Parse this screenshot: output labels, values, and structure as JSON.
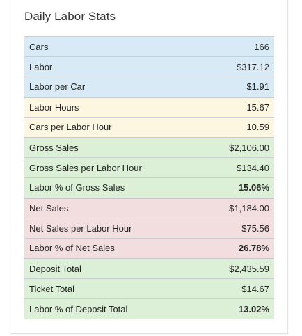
{
  "card": {
    "title": "Daily Labor Stats"
  },
  "colors": {
    "blue": "#d7eaf6",
    "yellow": "#fdf7e2",
    "green": "#dcefd7",
    "red": "#f3dedf"
  },
  "rows": [
    {
      "label": "Cars",
      "value": "166",
      "group": "blue"
    },
    {
      "label": "Labor",
      "value": "$317.12",
      "group": "blue"
    },
    {
      "label": "Labor per Car",
      "value": "$1.91",
      "group": "blue"
    },
    {
      "label": "Labor Hours",
      "value": "15.67",
      "group": "yellow"
    },
    {
      "label": "Cars per Labor Hour",
      "value": "10.59",
      "group": "yellow"
    },
    {
      "label": "Gross Sales",
      "value": "$2,106.00",
      "group": "green"
    },
    {
      "label": "Gross Sales per Labor Hour",
      "value": "$134.40",
      "group": "green"
    },
    {
      "label": "Labor % of Gross Sales",
      "value": "15.06%",
      "group": "green",
      "bold": true
    },
    {
      "label": "Net Sales",
      "value": "$1,184.00",
      "group": "red"
    },
    {
      "label": "Net Sales per Labor Hour",
      "value": "$75.56",
      "group": "red"
    },
    {
      "label": "Labor % of Net Sales",
      "value": "26.78%",
      "group": "red",
      "bold": true
    },
    {
      "label": "Deposit Total",
      "value": "$2,435.59",
      "group": "green"
    },
    {
      "label": "Ticket Total",
      "value": "$14.67",
      "group": "green"
    },
    {
      "label": "Labor % of Deposit Total",
      "value": "13.02%",
      "group": "green",
      "bold": true
    }
  ]
}
